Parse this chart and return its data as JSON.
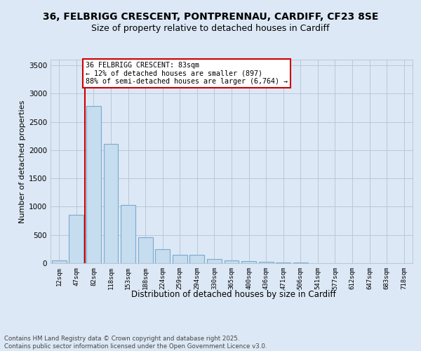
{
  "title_line1": "36, FELBRIGG CRESCENT, PONTPRENNAU, CARDIFF, CF23 8SE",
  "title_line2": "Size of property relative to detached houses in Cardiff",
  "xlabel": "Distribution of detached houses by size in Cardiff",
  "ylabel": "Number of detached properties",
  "categories": [
    "12sqm",
    "47sqm",
    "82sqm",
    "118sqm",
    "153sqm",
    "188sqm",
    "224sqm",
    "259sqm",
    "294sqm",
    "330sqm",
    "365sqm",
    "400sqm",
    "436sqm",
    "471sqm",
    "506sqm",
    "541sqm",
    "577sqm",
    "612sqm",
    "647sqm",
    "683sqm",
    "718sqm"
  ],
  "values": [
    55,
    855,
    2780,
    2105,
    1035,
    460,
    245,
    155,
    155,
    75,
    55,
    40,
    30,
    10,
    10,
    5,
    5,
    0,
    0,
    0,
    0
  ],
  "bar_color": "#c6dcef",
  "bar_edge_color": "#7aaacf",
  "vline_color": "#cc0000",
  "vline_x": 2,
  "annotation_text": "36 FELBRIGG CRESCENT: 83sqm\n← 12% of detached houses are smaller (897)\n88% of semi-detached houses are larger (6,764) →",
  "annotation_box_color": "#ffffff",
  "annotation_box_edge": "#cc0000",
  "ylim": [
    0,
    3600
  ],
  "yticks": [
    0,
    500,
    1000,
    1500,
    2000,
    2500,
    3000,
    3500
  ],
  "footer_line1": "Contains HM Land Registry data © Crown copyright and database right 2025.",
  "footer_line2": "Contains public sector information licensed under the Open Government Licence v3.0.",
  "bg_color": "#dce8f5",
  "grid_color": "#b8c8d8"
}
